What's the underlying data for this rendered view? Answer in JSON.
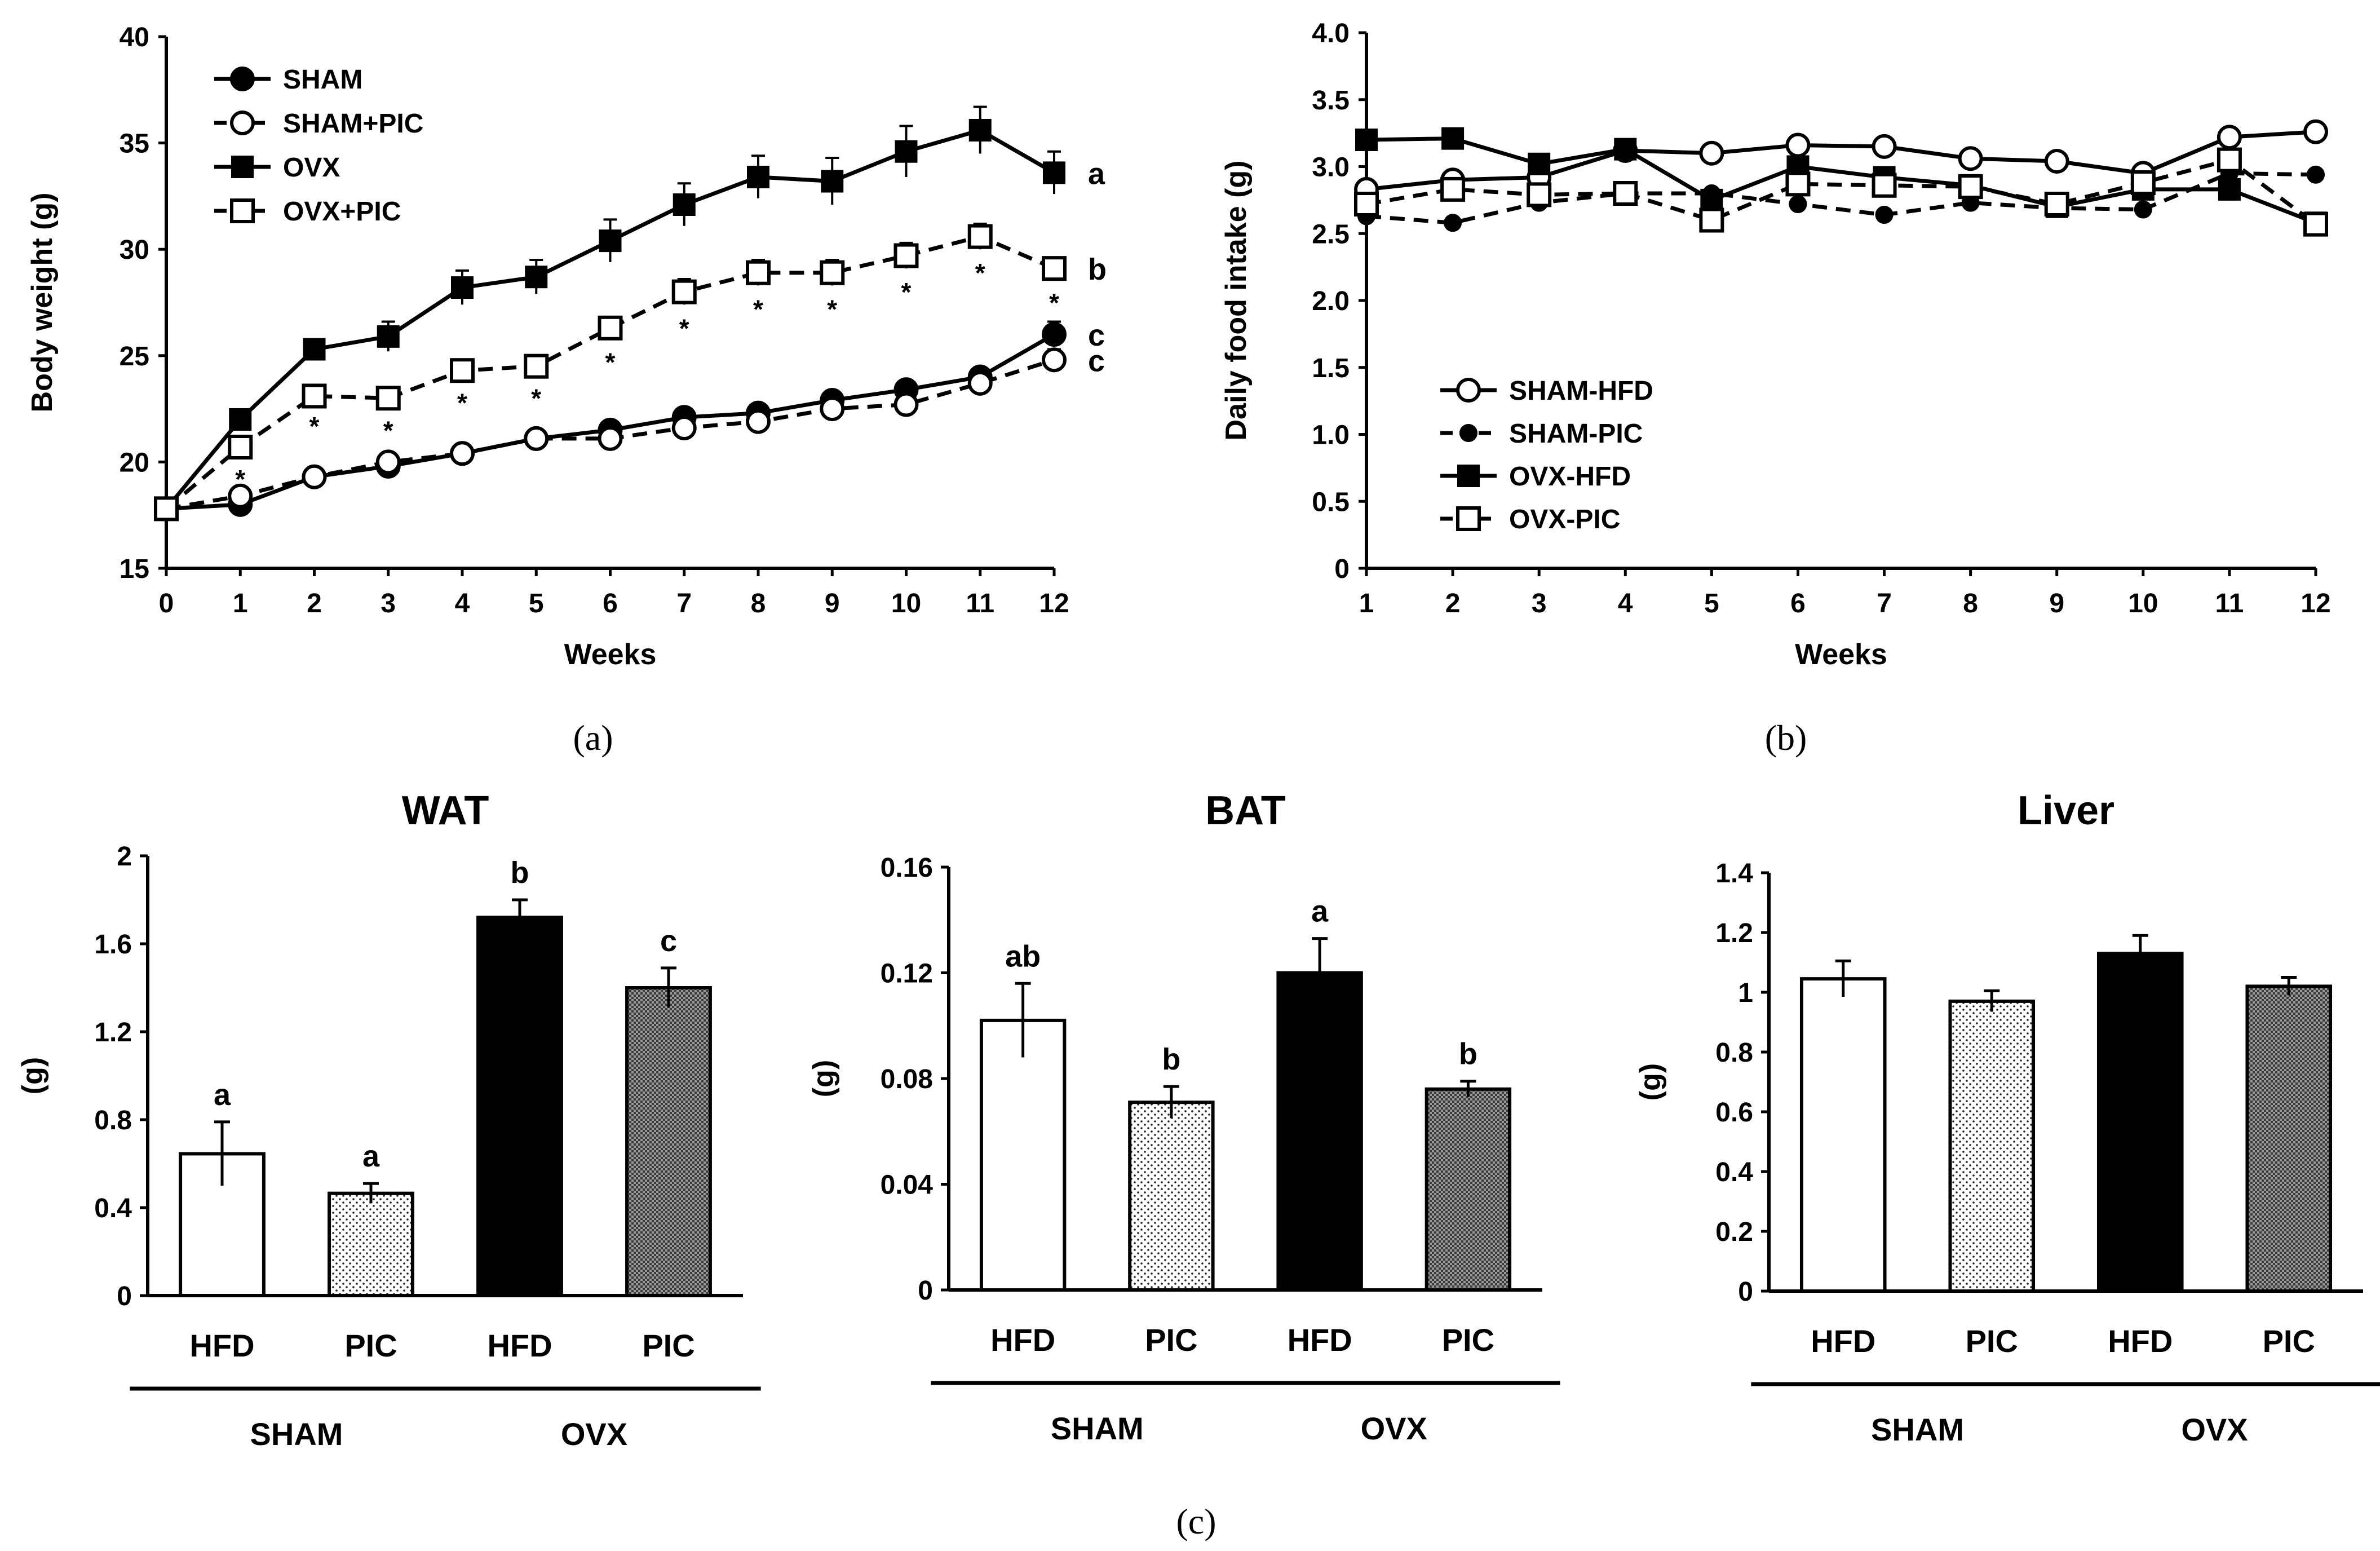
{
  "panel_labels": {
    "a": "(a)",
    "b": "(b)",
    "c": "(c)"
  },
  "chart_data": [
    {
      "id": "body-weight",
      "type": "line",
      "xlabel": "Weeks",
      "ylabel": "Body weight (g)",
      "x": [
        0,
        1,
        2,
        3,
        4,
        5,
        6,
        7,
        8,
        9,
        10,
        11,
        12
      ],
      "xlim": [
        0,
        12
      ],
      "ylim": [
        15,
        40
      ],
      "yticks": [
        "15",
        "20",
        "25",
        "30",
        "35",
        "40"
      ],
      "legend_position": "top-left",
      "series": [
        {
          "name": "SHAM",
          "marker": "filled-circle",
          "dash": false,
          "values": [
            17.8,
            18.0,
            19.3,
            19.8,
            20.4,
            21.1,
            21.5,
            22.1,
            22.3,
            22.9,
            23.4,
            24.0,
            26.0
          ],
          "errors": [
            0.3,
            0.3,
            0.3,
            0.4,
            0.3,
            0.3,
            0.3,
            0.3,
            0.3,
            0.4,
            0.4,
            0.4,
            0.6
          ],
          "sig": "c"
        },
        {
          "name": "SHAM+PIC",
          "marker": "open-circle",
          "dash": true,
          "values": [
            17.8,
            18.4,
            19.3,
            20.0,
            20.4,
            21.1,
            21.1,
            21.6,
            21.9,
            22.5,
            22.7,
            23.7,
            24.8
          ],
          "errors": [
            0.3,
            0.3,
            0.3,
            0.4,
            0.3,
            0.3,
            0.3,
            0.3,
            0.3,
            0.3,
            0.3,
            0.4,
            0.5
          ],
          "sig": "c"
        },
        {
          "name": "OVX",
          "marker": "filled-square",
          "dash": false,
          "values": [
            17.8,
            22.0,
            25.3,
            25.9,
            28.2,
            28.7,
            30.4,
            32.1,
            33.4,
            33.2,
            34.6,
            35.6,
            33.6
          ],
          "errors": [
            0.3,
            0.4,
            0.4,
            0.7,
            0.8,
            0.8,
            1.0,
            1.0,
            1.0,
            1.1,
            1.2,
            1.1,
            1.0
          ],
          "sig": "a"
        },
        {
          "name": "OVX+PIC",
          "marker": "open-square",
          "dash": true,
          "values": [
            17.8,
            20.7,
            23.1,
            23.0,
            24.3,
            24.5,
            26.3,
            28.0,
            28.9,
            28.9,
            29.7,
            30.6,
            29.1
          ],
          "errors": [
            0.3,
            0.4,
            0.3,
            0.4,
            0.4,
            0.4,
            0.5,
            0.6,
            0.6,
            0.6,
            0.6,
            0.6,
            0.5
          ],
          "sig": "b"
        }
      ],
      "asterisk_weeks": [
        1,
        2,
        3,
        4,
        5,
        6,
        7,
        8,
        9,
        10,
        11,
        12
      ],
      "asterisk_label": "*"
    },
    {
      "id": "daily-food-intake",
      "type": "line",
      "xlabel": "Weeks",
      "ylabel": "Daily food intake (g)",
      "x": [
        1,
        2,
        3,
        4,
        5,
        6,
        7,
        8,
        9,
        10,
        11,
        12
      ],
      "xlim": [
        1,
        12
      ],
      "ylim": [
        0,
        4.0
      ],
      "yticks": [
        "0",
        "0.5",
        "1.0",
        "1.5",
        "2.0",
        "2.5",
        "3.0",
        "3.5",
        "4.0"
      ],
      "legend_position": "bottom-left",
      "series": [
        {
          "name": "SHAM-HFD",
          "marker": "open-circle",
          "dash": false,
          "values": [
            2.83,
            2.9,
            2.92,
            3.12,
            3.1,
            3.16,
            3.15,
            3.06,
            3.04,
            2.95,
            3.22,
            3.26
          ]
        },
        {
          "name": "SHAM-PIC",
          "marker": "small-filled-circle",
          "dash": true,
          "values": [
            2.63,
            2.58,
            2.73,
            2.8,
            2.8,
            2.72,
            2.64,
            2.73,
            2.69,
            2.68,
            2.95,
            2.94
          ]
        },
        {
          "name": "OVX-HFD",
          "marker": "filled-square",
          "dash": false,
          "values": [
            3.2,
            3.21,
            3.02,
            3.13,
            2.75,
            3.0,
            2.92,
            2.86,
            2.7,
            2.83,
            2.83,
            2.58
          ]
        },
        {
          "name": "OVX-PIC",
          "marker": "open-square",
          "dash": true,
          "values": [
            2.72,
            2.83,
            2.79,
            2.8,
            2.6,
            2.87,
            2.86,
            2.85,
            2.72,
            2.88,
            3.05,
            2.57
          ]
        }
      ]
    },
    {
      "id": "wat",
      "type": "bar",
      "title": "WAT",
      "ylabel": "(g)",
      "ylim": [
        0,
        2
      ],
      "yticks": [
        "0",
        "0.4",
        "0.8",
        "1.2",
        "1.6",
        "2"
      ],
      "categories": [
        "HFD",
        "PIC",
        "HFD",
        "PIC"
      ],
      "groups": [
        "SHAM",
        "OVX"
      ],
      "fills": [
        "white",
        "dots",
        "black",
        "grid"
      ],
      "values": [
        0.645,
        0.465,
        1.72,
        1.4
      ],
      "errors": [
        0.145,
        0.045,
        0.08,
        0.09
      ],
      "sig": [
        "a",
        "a",
        "b",
        "c"
      ]
    },
    {
      "id": "bat",
      "type": "bar",
      "title": "BAT",
      "ylabel": "(g)",
      "ylim": [
        0,
        0.16
      ],
      "yticks": [
        "0",
        "0.04",
        "0.08",
        "0.12",
        "0.16"
      ],
      "categories": [
        "HFD",
        "PIC",
        "HFD",
        "PIC"
      ],
      "groups": [
        "SHAM",
        "OVX"
      ],
      "fills": [
        "white",
        "dots",
        "black",
        "grid"
      ],
      "values": [
        0.102,
        0.071,
        0.12,
        0.076
      ],
      "errors": [
        0.014,
        0.006,
        0.013,
        0.003
      ],
      "sig": [
        "ab",
        "b",
        "a",
        "b"
      ]
    },
    {
      "id": "liver",
      "type": "bar",
      "title": "Liver",
      "ylabel": "(g)",
      "ylim": [
        0,
        1.4
      ],
      "yticks": [
        "0",
        "0.2",
        "0.4",
        "0.6",
        "0.8",
        "1",
        "1.2",
        "1.4"
      ],
      "categories": [
        "HFD",
        "PIC",
        "HFD",
        "PIC"
      ],
      "groups": [
        "SHAM",
        "OVX"
      ],
      "fills": [
        "white",
        "dots",
        "black",
        "grid"
      ],
      "values": [
        1.045,
        0.97,
        1.13,
        1.02
      ],
      "errors": [
        0.06,
        0.035,
        0.06,
        0.03
      ],
      "sig": [
        "",
        "",
        "",
        ""
      ]
    }
  ]
}
